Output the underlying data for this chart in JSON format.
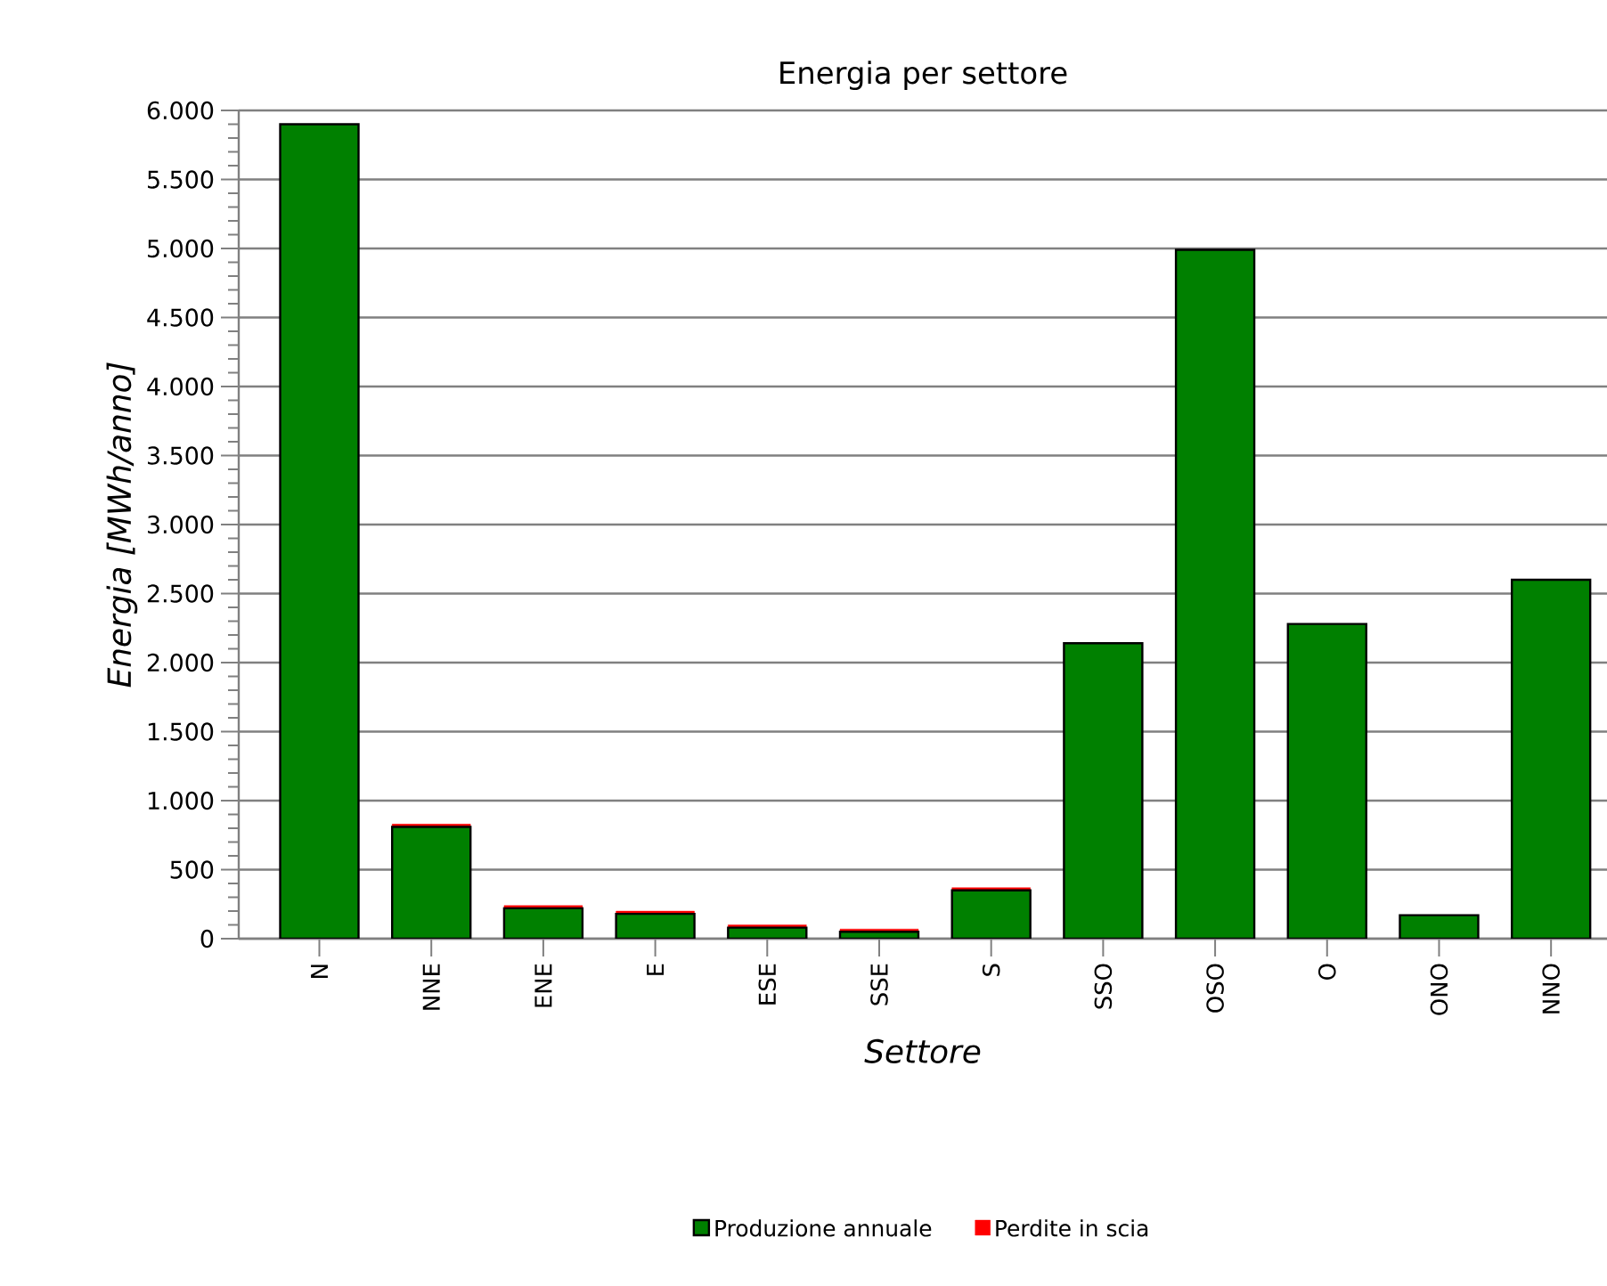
{
  "chart_data": {
    "type": "bar",
    "title": "Energia per settore",
    "xlabel": "Settore",
    "ylabel": "Energia [MWh/anno]",
    "categories": [
      "N",
      "NNE",
      "ENE",
      "E",
      "ESE",
      "SSE",
      "S",
      "SSO",
      "OSO",
      "O",
      "ONO",
      "NNO"
    ],
    "stacked": true,
    "series": [
      {
        "name": "Produzione annuale",
        "color": "#008000",
        "values": [
          5900,
          810,
          220,
          180,
          80,
          50,
          350,
          2140,
          4990,
          2280,
          170,
          2600
        ]
      },
      {
        "name": "Perdite in scia",
        "color": "#ff0000",
        "values": [
          0,
          20,
          20,
          20,
          20,
          20,
          20,
          0,
          0,
          0,
          0,
          0
        ]
      }
    ],
    "ylim": [
      0,
      6000
    ],
    "yticks": [
      {
        "value": 0,
        "label": "0"
      },
      {
        "value": 500,
        "label": "500"
      },
      {
        "value": 1000,
        "label": "1.000"
      },
      {
        "value": 1500,
        "label": "1.500"
      },
      {
        "value": 2000,
        "label": "2.000"
      },
      {
        "value": 2500,
        "label": "2.500"
      },
      {
        "value": 3000,
        "label": "3.000"
      },
      {
        "value": 3500,
        "label": "3.500"
      },
      {
        "value": 4000,
        "label": "4.000"
      },
      {
        "value": 4500,
        "label": "4.500"
      },
      {
        "value": 5000,
        "label": "5.000"
      },
      {
        "value": 5500,
        "label": "5.500"
      },
      {
        "value": 6000,
        "label": "6.000"
      }
    ],
    "grid": "y",
    "legend": "bottom"
  }
}
